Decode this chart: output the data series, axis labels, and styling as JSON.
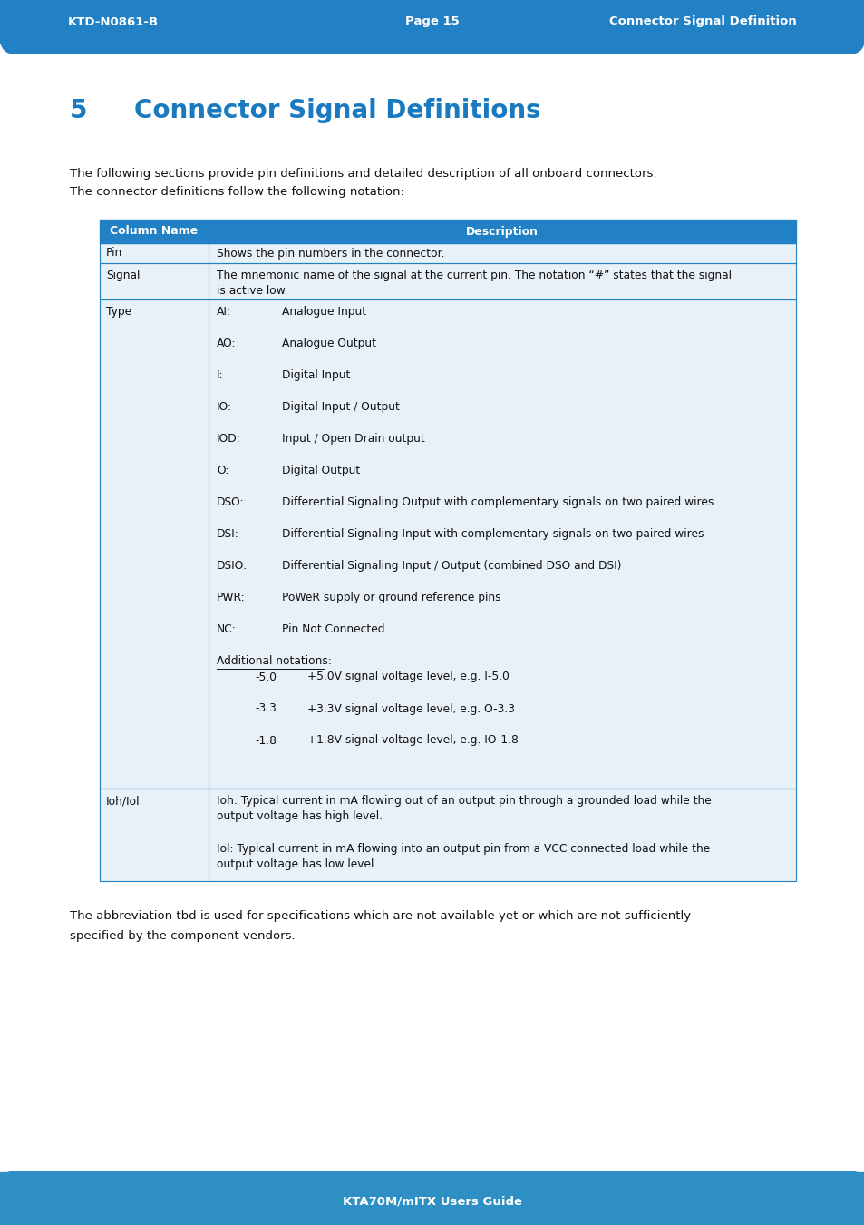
{
  "header_bg": "#2280c4",
  "header_text_color": "#ffffff",
  "header_left": "KTD-N0861-B",
  "header_center": "Page 15",
  "header_right": "Connector Signal Definition",
  "footer_bg": "#2e8fc5",
  "footer_text": "KTA70M/mITX Users Guide",
  "footer_text_color": "#ffffff",
  "page_bg": "#ffffff",
  "title_number": "5",
  "title_text": "Connector Signal Definitions",
  "title_color": "#1a7abf",
  "intro_line1": "The following sections provide pin definitions and detailed description of all onboard connectors.",
  "intro_line2": "The connector definitions follow the following notation:",
  "table_header_bg": "#2280c4",
  "table_header_text_color": "#ffffff",
  "table_col1_header": "Column Name",
  "table_col2_header": "Description",
  "table_border_color": "#2280c4",
  "table_row_bg": "#e8f0f8",
  "type_items": [
    [
      "AI:",
      "Analogue Input"
    ],
    [
      "AO:",
      "Analogue Output"
    ],
    [
      "I:",
      "Digital Input"
    ],
    [
      "IO:",
      "Digital Input / Output"
    ],
    [
      "IOD:",
      "Input / Open Drain output"
    ],
    [
      "O:",
      "Digital Output"
    ],
    [
      "DSO:",
      "Differential Signaling Output with complementary signals on two paired wires"
    ],
    [
      "DSI:",
      "Differential Signaling Input with complementary signals on two paired wires"
    ],
    [
      "DSIO:",
      "Differential Signaling Input / Output (combined DSO and DSI)"
    ],
    [
      "PWR:",
      "PoWeR supply or ground reference pins"
    ],
    [
      "NC:",
      "Pin Not Connected"
    ]
  ],
  "add_notations": [
    [
      "-5.0",
      "+5.0V signal voltage level, e.g. I-5.0"
    ],
    [
      "-3.3",
      "+3.3V signal voltage level, e.g. O-3.3"
    ],
    [
      "-1.8",
      "+1.8V signal voltage level, e.g. IO-1.8"
    ]
  ],
  "footer_note_line1": "The abbreviation tbd is used for specifications which are not available yet or which are not sufficiently",
  "footer_note_line2": "specified by the component vendors."
}
